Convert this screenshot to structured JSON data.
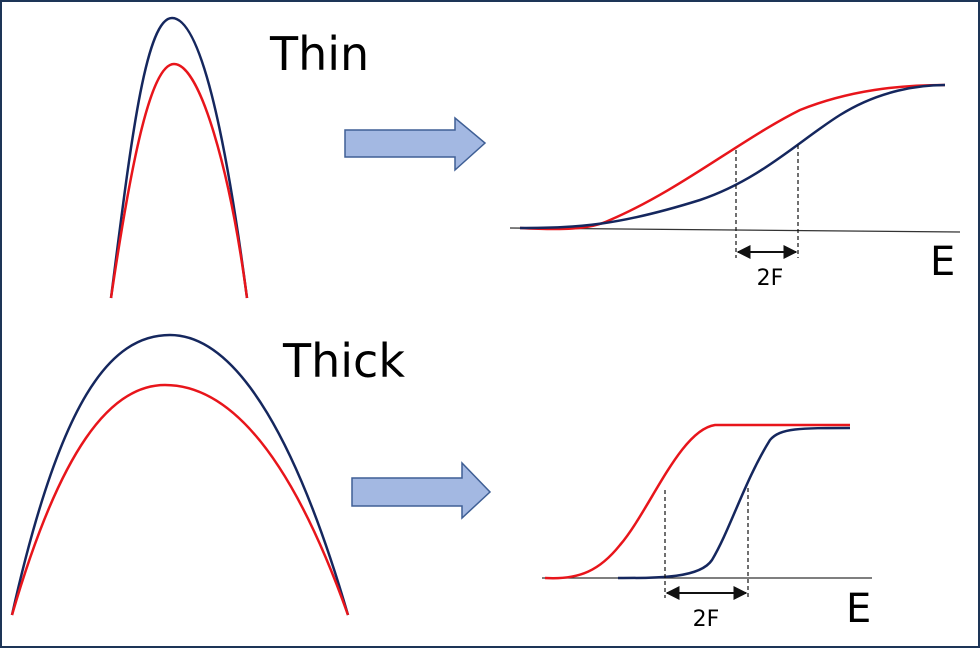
{
  "panels": [
    {
      "label": "Thin",
      "axis_label": "E",
      "gap_label": "2F"
    },
    {
      "label": "Thick",
      "axis_label": "E",
      "gap_label": "2F"
    }
  ]
}
